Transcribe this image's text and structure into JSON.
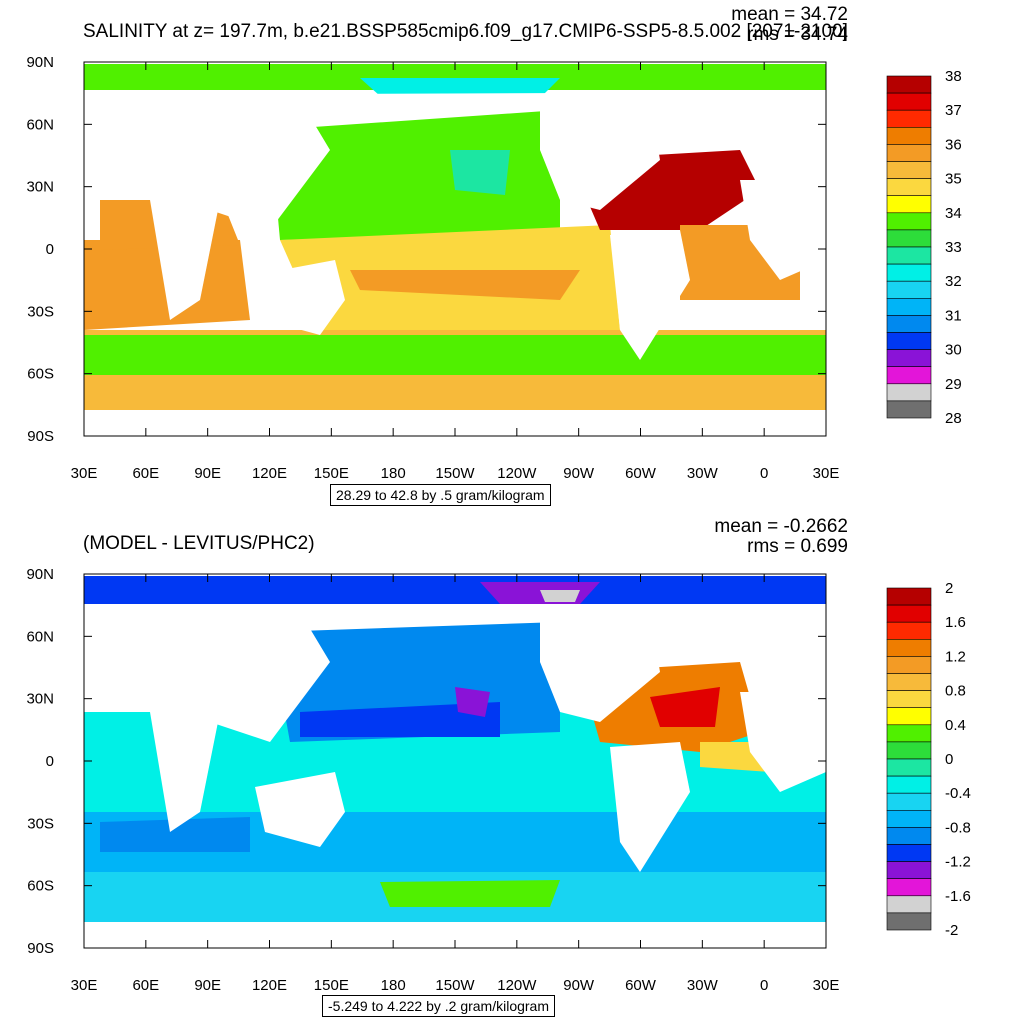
{
  "colors": {
    "ocean_land_mask": "#ffffff",
    "panel_border": "#000000"
  },
  "chart_data": [
    {
      "type": "heatmap",
      "title": "SALINITY at z= 197.7m, b.e21.BSSP585cmip6.f09_g17.CMIP6-SSP5-8.5.002 [2071-2100]",
      "stats": {
        "mean": "mean = 34.72",
        "rms": "rms = 34.74"
      },
      "info_box": "28.29 to 42.8 by .5 gram/kilogram",
      "xticks": [
        "30E",
        "60E",
        "90E",
        "120E",
        "150E",
        "180",
        "150W",
        "120W",
        "90W",
        "60W",
        "30W",
        "0",
        "30E"
      ],
      "yticks": [
        "90N",
        "60N",
        "30N",
        "0",
        "30S",
        "60S",
        "90S"
      ],
      "grid": false,
      "colorbar": {
        "placement": "right",
        "labels": [
          "38",
          "37",
          "36",
          "35",
          "34",
          "33",
          "32",
          "31",
          "30",
          "29",
          "28"
        ],
        "colors": [
          "#b50000",
          "#e10000",
          "#ff2a00",
          "#ee7d00",
          "#f39b25",
          "#f7ba3a",
          "#fbd83f",
          "#ffff00",
          "#50f000",
          "#2ddd3a",
          "#1ce6a2",
          "#00f0e6",
          "#18d4f2",
          "#00b4f7",
          "#0089ef",
          "#0038f3",
          "#8a13d7",
          "#e315d9",
          "#d2d2d2",
          "#6f6f6f"
        ]
      }
    },
    {
      "type": "heatmap",
      "title": "(MODEL - LEVITUS/PHC2)",
      "stats": {
        "mean": "mean = -0.2662",
        "rms": "rms = 0.699"
      },
      "info_box": "-5.249 to 4.222 by .2 gram/kilogram",
      "xticks": [
        "30E",
        "60E",
        "90E",
        "120E",
        "150E",
        "180",
        "150W",
        "120W",
        "90W",
        "60W",
        "30W",
        "0",
        "30E"
      ],
      "yticks": [
        "90N",
        "60N",
        "30N",
        "0",
        "30S",
        "60S",
        "90S"
      ],
      "grid": false,
      "colorbar": {
        "placement": "right",
        "labels": [
          "2",
          "1.6",
          "1.2",
          "0.8",
          "0.4",
          "0",
          "-0.4",
          "-0.8",
          "-1.2",
          "-1.6",
          "-2"
        ],
        "colors": [
          "#b50000",
          "#e10000",
          "#ff2a00",
          "#ee7d00",
          "#f39b25",
          "#f7ba3a",
          "#fbd83f",
          "#ffff00",
          "#50f000",
          "#2ddd3a",
          "#1ce6a2",
          "#00f0e6",
          "#18d4f2",
          "#00b4f7",
          "#0089ef",
          "#0038f3",
          "#8a13d7",
          "#e315d9",
          "#d2d2d2",
          "#6f6f6f"
        ]
      }
    }
  ]
}
